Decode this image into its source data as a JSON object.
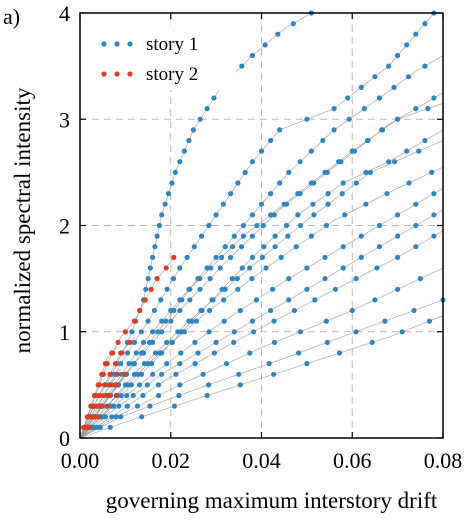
{
  "panel_label": "a)",
  "colors": {
    "story1": "#2e86c1",
    "story2": "#e03c1f",
    "grid": "#bbbbbb",
    "connector": "#9a9a9a"
  },
  "chart_data": {
    "type": "scatter",
    "title": "",
    "xlabel": "governing maximum interstory drift",
    "ylabel": "normalized spectral intensity",
    "xlim": [
      0,
      0.08
    ],
    "ylim": [
      0,
      4
    ],
    "xticks": [
      "0.00",
      "0.02",
      "0.04",
      "0.06",
      "0.08"
    ],
    "yticks": [
      "0",
      "1",
      "2",
      "3",
      "4"
    ],
    "grid": true,
    "legend_position": "top-left",
    "y_step": 0.1,
    "series": [
      {
        "name": "story 1",
        "color": "#2e86c1",
        "curves": [
          [
            [
              0.0,
              0.0
            ],
            [
              0.003,
              0.3
            ],
            [
              0.007,
              0.6
            ],
            [
              0.011,
              0.95
            ],
            [
              0.014,
              1.3
            ],
            [
              0.016,
              1.7
            ],
            [
              0.018,
              2.1
            ],
            [
              0.021,
              2.5
            ],
            [
              0.025,
              2.9
            ],
            [
              0.031,
              3.3
            ],
            [
              0.038,
              3.6
            ],
            [
              0.045,
              3.85
            ],
            [
              0.051,
              4.0
            ]
          ],
          [
            [
              0.0,
              0.0
            ],
            [
              0.004,
              0.3
            ],
            [
              0.009,
              0.7
            ],
            [
              0.015,
              1.1
            ],
            [
              0.022,
              1.6
            ],
            [
              0.03,
              2.1
            ],
            [
              0.038,
              2.6
            ],
            [
              0.044,
              2.9
            ],
            [
              0.05,
              3.0
            ],
            [
              0.056,
              3.1
            ],
            [
              0.062,
              3.3
            ],
            [
              0.068,
              3.5
            ],
            [
              0.074,
              3.8
            ],
            [
              0.078,
              4.0
            ]
          ],
          [
            [
              0.0,
              0.0
            ],
            [
              0.004,
              0.25
            ],
            [
              0.01,
              0.6
            ],
            [
              0.018,
              1.05
            ],
            [
              0.026,
              1.5
            ],
            [
              0.036,
              2.0
            ],
            [
              0.046,
              2.5
            ],
            [
              0.056,
              2.9
            ],
            [
              0.066,
              3.2
            ],
            [
              0.074,
              3.45
            ],
            [
              0.08,
              3.6
            ]
          ],
          [
            [
              0.0,
              0.0
            ],
            [
              0.005,
              0.3
            ],
            [
              0.012,
              0.7
            ],
            [
              0.022,
              1.2
            ],
            [
              0.032,
              1.65
            ],
            [
              0.044,
              2.15
            ],
            [
              0.056,
              2.55
            ],
            [
              0.068,
              2.95
            ],
            [
              0.08,
              3.25
            ]
          ],
          [
            [
              0.0,
              0.0
            ],
            [
              0.005,
              0.25
            ],
            [
              0.013,
              0.65
            ],
            [
              0.024,
              1.1
            ],
            [
              0.036,
              1.55
            ],
            [
              0.05,
              2.05
            ],
            [
              0.064,
              2.5
            ],
            [
              0.08,
              2.8
            ]
          ],
          [
            [
              0.0,
              0.0
            ],
            [
              0.006,
              0.3
            ],
            [
              0.015,
              0.7
            ],
            [
              0.027,
              1.15
            ],
            [
              0.041,
              1.6
            ],
            [
              0.056,
              2.05
            ],
            [
              0.07,
              2.35
            ],
            [
              0.08,
              2.55
            ]
          ],
          [
            [
              0.0,
              0.0
            ],
            [
              0.006,
              0.25
            ],
            [
              0.016,
              0.6
            ],
            [
              0.03,
              1.05
            ],
            [
              0.046,
              1.5
            ],
            [
              0.062,
              1.9
            ],
            [
              0.08,
              2.35
            ]
          ],
          [
            [
              0.0,
              0.0
            ],
            [
              0.007,
              0.25
            ],
            [
              0.018,
              0.6
            ],
            [
              0.034,
              1.0
            ],
            [
              0.05,
              1.4
            ],
            [
              0.066,
              1.8
            ],
            [
              0.08,
              2.15
            ]
          ],
          [
            [
              0.0,
              0.0
            ],
            [
              0.007,
              0.2
            ],
            [
              0.019,
              0.55
            ],
            [
              0.036,
              0.95
            ],
            [
              0.054,
              1.35
            ],
            [
              0.07,
              1.7
            ],
            [
              0.08,
              1.95
            ]
          ],
          [
            [
              0.0,
              0.0
            ],
            [
              0.008,
              0.2
            ],
            [
              0.022,
              0.5
            ],
            [
              0.04,
              0.85
            ],
            [
              0.06,
              1.2
            ],
            [
              0.08,
              1.6
            ]
          ],
          [
            [
              0.0,
              0.0
            ],
            [
              0.009,
              0.2
            ],
            [
              0.025,
              0.45
            ],
            [
              0.045,
              0.75
            ],
            [
              0.064,
              1.05
            ],
            [
              0.08,
              1.3
            ]
          ],
          [
            [
              0.0,
              0.0
            ],
            [
              0.01,
              0.15
            ],
            [
              0.028,
              0.4
            ],
            [
              0.05,
              0.7
            ],
            [
              0.068,
              0.95
            ],
            [
              0.08,
              1.15
            ]
          ],
          [
            [
              0.0,
              0.0
            ],
            [
              0.008,
              0.35
            ],
            [
              0.018,
              0.8
            ],
            [
              0.028,
              1.25
            ],
            [
              0.038,
              1.7
            ],
            [
              0.048,
              2.1
            ],
            [
              0.058,
              2.4
            ],
            [
              0.068,
              2.6
            ],
            [
              0.08,
              2.9
            ]
          ],
          [
            [
              0.0,
              0.0
            ],
            [
              0.006,
              0.4
            ],
            [
              0.014,
              0.9
            ],
            [
              0.024,
              1.4
            ],
            [
              0.036,
              1.9
            ],
            [
              0.048,
              2.3
            ],
            [
              0.06,
              2.7
            ],
            [
              0.07,
              3.0
            ],
            [
              0.08,
              3.15
            ]
          ]
        ]
      },
      {
        "name": "story 2",
        "color": "#e03c1f",
        "curves": [
          [
            [
              0.0,
              0.0
            ],
            [
              0.003,
              0.35
            ],
            [
              0.006,
              0.7
            ],
            [
              0.009,
              0.95
            ],
            [
              0.011,
              1.05
            ],
            [
              0.012,
              1.1
            ],
            [
              0.015,
              1.35
            ],
            [
              0.017,
              1.5
            ],
            [
              0.019,
              1.6
            ],
            [
              0.021,
              1.72
            ]
          ],
          [
            [
              0.0,
              0.0
            ],
            [
              0.003,
              0.3
            ],
            [
              0.006,
              0.55
            ],
            [
              0.009,
              0.8
            ],
            [
              0.012,
              0.95
            ]
          ],
          [
            [
              0.0,
              0.0
            ],
            [
              0.003,
              0.25
            ],
            [
              0.006,
              0.45
            ],
            [
              0.009,
              0.65
            ]
          ],
          [
            [
              0.0,
              0.0
            ],
            [
              0.002,
              0.25
            ],
            [
              0.004,
              0.5
            ],
            [
              0.006,
              0.75
            ],
            [
              0.008,
              0.85
            ]
          ],
          [
            [
              0.0,
              0.0
            ],
            [
              0.004,
              0.25
            ],
            [
              0.008,
              0.5
            ],
            [
              0.01,
              0.6
            ]
          ],
          [
            [
              0.0,
              0.0
            ],
            [
              0.003,
              0.15
            ],
            [
              0.006,
              0.3
            ],
            [
              0.008,
              0.4
            ]
          ]
        ]
      }
    ]
  }
}
